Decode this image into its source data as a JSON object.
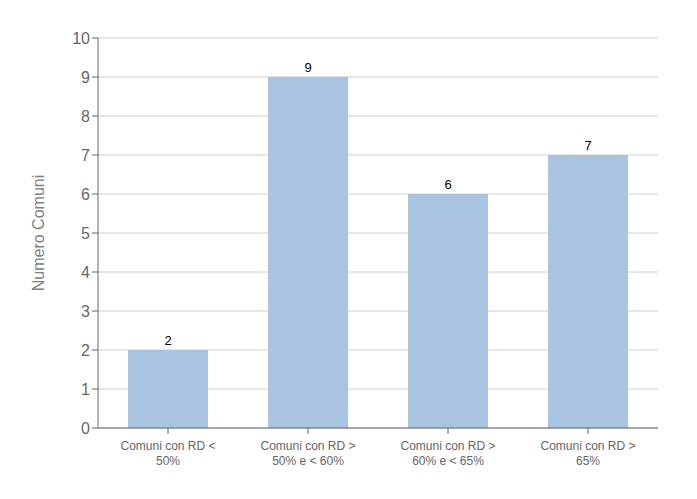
{
  "chart_data": {
    "type": "bar",
    "categories": [
      "Comuni con RD <\n50%",
      "Comuni con RD >\n50% e < 60%",
      "Comuni con RD >\n60% e < 65%",
      "Comuni con RD >\n65%"
    ],
    "values": [
      2,
      9,
      6,
      7
    ],
    "color": "#a8c4e0",
    "ylabel": "Numero Comuni",
    "ylim": [
      0,
      10
    ],
    "yticks": [
      0,
      1,
      2,
      3,
      4,
      5,
      6,
      7,
      8,
      9,
      10
    ],
    "grid": true,
    "data_labels": true
  }
}
